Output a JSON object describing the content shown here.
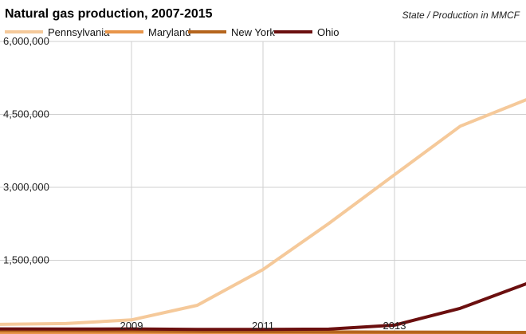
{
  "chart_data": {
    "type": "line",
    "title": "Natural gas production, 2007-2015",
    "subtitle": "State / Production in MMCF",
    "x": [
      2007,
      2008,
      2009,
      2010,
      2011,
      2012,
      2013,
      2014,
      2015
    ],
    "x_tick_labels": [
      "2009",
      "2011",
      "2013"
    ],
    "x_tick_values": [
      2009,
      2011,
      2013
    ],
    "y_tick_labels": [
      "1,500,000",
      "3,000,000",
      "4,500,000",
      "6,000,000"
    ],
    "y_tick_values": [
      1500000,
      3000000,
      4500000,
      6000000
    ],
    "ylim": [
      0,
      6000000
    ],
    "xlim": [
      2007,
      2015
    ],
    "grid": true,
    "legend_position": "top",
    "series": [
      {
        "name": "Pennsylvania",
        "color": "#f5c99a",
        "values": [
          182000,
          198000,
          274000,
          573000,
          1310000,
          2256000,
          3259000,
          4257000,
          4800000
        ]
      },
      {
        "name": "Maryland",
        "color": "#e8954a",
        "values": [
          40,
          30,
          40,
          40,
          40,
          40,
          20,
          30,
          20
        ]
      },
      {
        "name": "New York",
        "color": "#b5651d",
        "values": [
          55000,
          50000,
          45000,
          36000,
          31000,
          26000,
          23000,
          20000,
          17000
        ]
      },
      {
        "name": "Ohio",
        "color": "#6b0f0f",
        "values": [
          88000,
          85000,
          89000,
          78000,
          79000,
          84000,
          166000,
          512000,
          1015000
        ]
      }
    ]
  }
}
